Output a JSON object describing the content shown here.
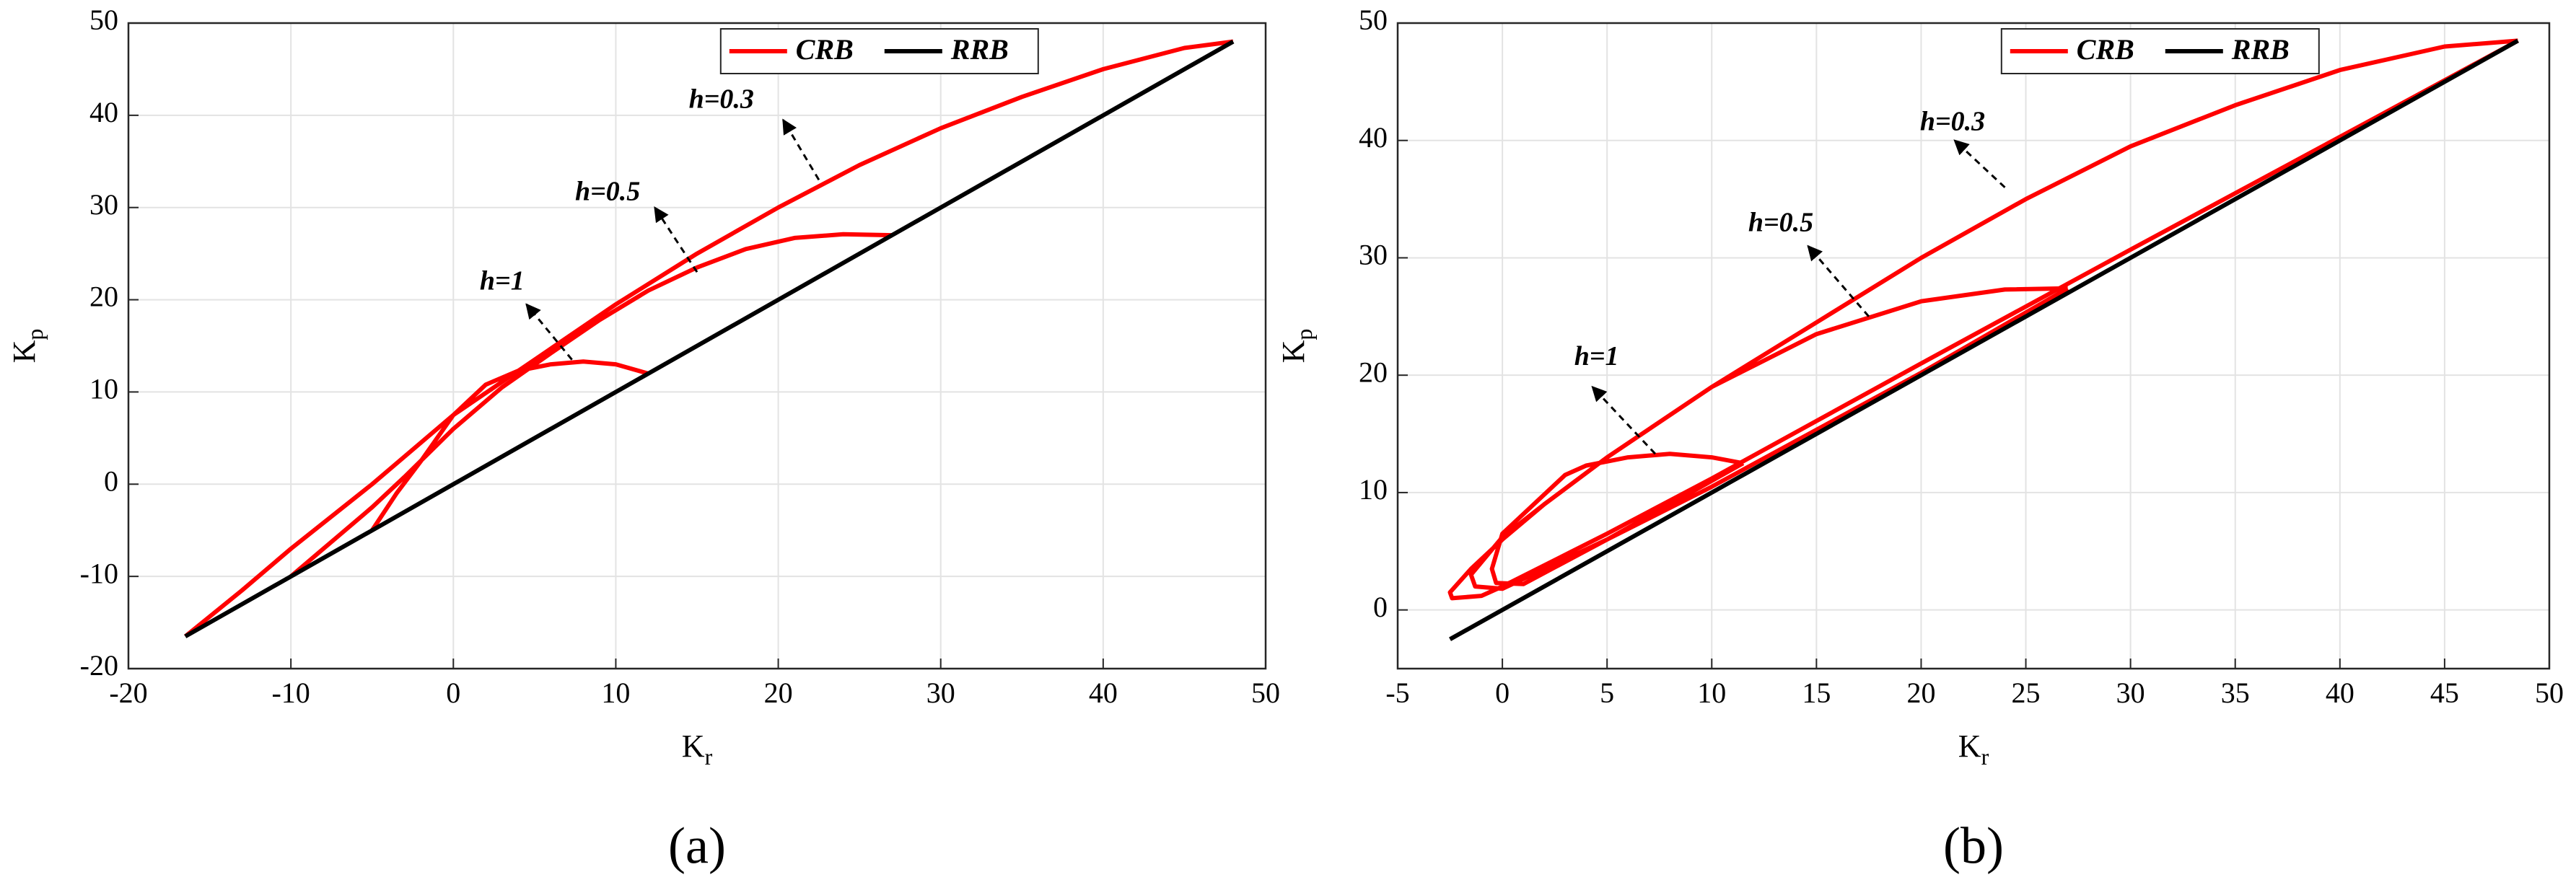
{
  "chart_data": [
    {
      "type": "line",
      "panel_label": "(a)",
      "xlabel": {
        "base": "K",
        "sub": "r"
      },
      "ylabel": {
        "base": "K",
        "sub": "p"
      },
      "xlim": [
        -20,
        50
      ],
      "ylim": [
        -20,
        50
      ],
      "xticks": [
        -20,
        -10,
        0,
        10,
        20,
        30,
        40,
        50
      ],
      "yticks": [
        -20,
        -10,
        0,
        10,
        20,
        30,
        40,
        50
      ],
      "grid": true,
      "legend": "upper right",
      "annotations": [
        {
          "text": "h=0.3"
        },
        {
          "text": "h=0.5"
        },
        {
          "text": "h=1"
        }
      ],
      "series": [
        {
          "name": "CRB",
          "color": "#ff0000",
          "x": [
            -16.5,
            -13,
            -10,
            -5,
            0,
            5,
            10,
            15,
            20,
            25,
            30,
            35,
            40,
            45,
            48,
            null,
            -10,
            -7,
            -5,
            -3,
            0,
            3,
            6,
            9,
            12,
            15,
            18,
            21,
            24,
            27,
            null,
            -5,
            -3.5,
            -2,
            0,
            2,
            4,
            6,
            8,
            10,
            12
          ],
          "values": [
            -16.5,
            -11.5,
            -7,
            0,
            7.5,
            13.5,
            19.5,
            25,
            30,
            34.6,
            38.6,
            42,
            45,
            47.3,
            48,
            null,
            -10,
            -5.5,
            -2.5,
            0.8,
            6,
            10.5,
            14.2,
            17.8,
            21,
            23.5,
            25.5,
            26.7,
            27.1,
            27,
            null,
            -5,
            -1,
            2.5,
            7.5,
            10.8,
            12.3,
            13,
            13.3,
            13,
            12
          ]
        },
        {
          "name": "RRB",
          "color": "#000000",
          "x": [
            -16.5,
            48
          ],
          "values": [
            -16.5,
            48
          ]
        }
      ]
    },
    {
      "type": "line",
      "panel_label": "(b)",
      "xlabel": {
        "base": "K",
        "sub": "r"
      },
      "ylabel": {
        "base": "K",
        "sub": "p"
      },
      "xlim": [
        -5,
        50
      ],
      "ylim": [
        -5,
        50
      ],
      "xticks": [
        -5,
        0,
        5,
        10,
        15,
        20,
        25,
        30,
        35,
        40,
        45,
        50
      ],
      "yticks": [
        0,
        10,
        20,
        30,
        40,
        50
      ],
      "grid": true,
      "legend": "upper right",
      "annotations": [
        {
          "text": "h=0.3"
        },
        {
          "text": "h=0.5"
        },
        {
          "text": "h=1"
        }
      ],
      "series": [
        {
          "name": "CRB",
          "color": "#ff0000",
          "x": [
            48.5,
            45,
            40,
            35,
            30,
            25,
            20,
            15,
            10,
            5,
            2,
            0,
            -1.5,
            -2.5,
            -2.4,
            -1,
            0,
            5,
            10,
            20,
            30,
            40,
            48.5,
            null,
            27,
            24,
            20,
            15,
            10,
            5,
            2,
            0,
            -1.5,
            -1.3,
            0,
            5,
            10,
            20,
            27,
            null,
            11.5,
            10,
            8,
            6,
            4,
            3,
            1.5,
            0,
            -0.5,
            -0.3,
            1,
            5,
            11.5
          ],
          "values": [
            48.5,
            48,
            46,
            43,
            39.5,
            35,
            30,
            24.5,
            19,
            13,
            9,
            6,
            3.5,
            1.5,
            1,
            1.2,
            2,
            6.5,
            11.2,
            21,
            30.7,
            40.3,
            48.5,
            null,
            27.4,
            27.3,
            26.3,
            23.5,
            19,
            13,
            9,
            6.2,
            3,
            2,
            1.8,
            6,
            10.5,
            20.2,
            27.4,
            null,
            12.5,
            13,
            13.3,
            13,
            12.3,
            11.5,
            9,
            6.5,
            3.5,
            2.3,
            2.2,
            6,
            12.5
          ]
        },
        {
          "name": "RRB",
          "color": "#000000",
          "x": [
            -2.5,
            48.5
          ],
          "values": [
            -2.5,
            48.5
          ]
        }
      ]
    }
  ]
}
